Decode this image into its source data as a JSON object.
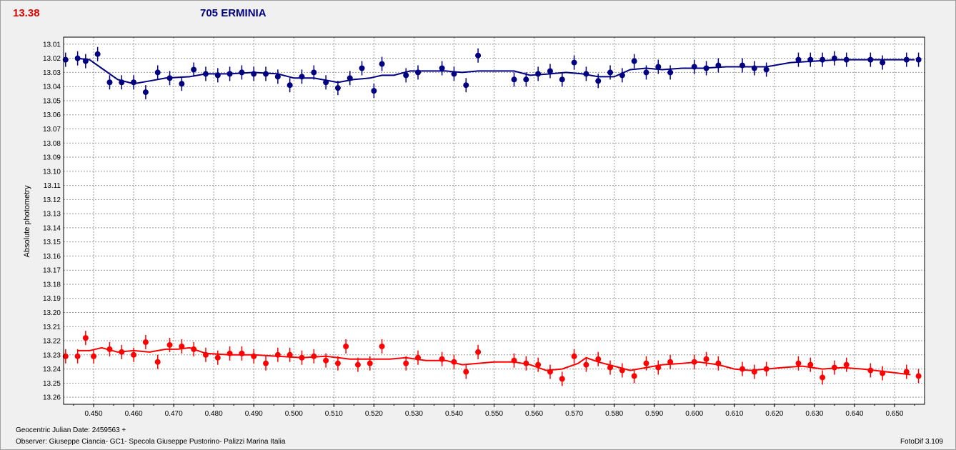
{
  "header": {
    "left_value": "13.38",
    "title": "705 ERMINIA"
  },
  "footer": {
    "julian_date": "Geocentric Julian Date: 2459563 +",
    "observer": "Observer: Giuseppe Ciancia- GC1- Specola Giuseppe Pustorino- Palizzi Marina Italia",
    "software": "FotoDif 3.109"
  },
  "chart_data": {
    "type": "scatter",
    "ylabel": "Absolute photometry",
    "xlabel": "",
    "xlim": [
      0.4425,
      0.6575
    ],
    "ylim": [
      13.005,
      13.265
    ],
    "y_inverted": true,
    "grid": true,
    "x_ticks": [
      "0.450",
      "0.460",
      "0.470",
      "0.480",
      "0.490",
      "0.500",
      "0.510",
      "0.520",
      "0.530",
      "0.540",
      "0.550",
      "0.560",
      "0.570",
      "0.580",
      "0.590",
      "0.600",
      "0.610",
      "0.620",
      "0.630",
      "0.640",
      "0.650"
    ],
    "y_ticks": [
      "13.01",
      "13.02",
      "13.03",
      "13.04",
      "13.05",
      "13.06",
      "13.07",
      "13.08",
      "13.09",
      "13.10",
      "13.11",
      "13.12",
      "13.13",
      "13.14",
      "13.15",
      "13.16",
      "13.17",
      "13.18",
      "13.19",
      "13.20",
      "13.21",
      "13.22",
      "13.23",
      "13.24",
      "13.25",
      "13.26"
    ],
    "series": [
      {
        "color": "#000080",
        "points": [
          [
            0.443,
            13.021
          ],
          [
            0.446,
            13.02
          ],
          [
            0.448,
            13.022
          ],
          [
            0.451,
            13.017
          ],
          [
            0.454,
            13.037
          ],
          [
            0.457,
            13.037
          ],
          [
            0.46,
            13.037
          ],
          [
            0.463,
            13.044
          ],
          [
            0.466,
            13.03
          ],
          [
            0.469,
            13.034
          ],
          [
            0.472,
            13.038
          ],
          [
            0.475,
            13.028
          ],
          [
            0.478,
            13.031
          ],
          [
            0.481,
            13.032
          ],
          [
            0.484,
            13.031
          ],
          [
            0.487,
            13.03
          ],
          [
            0.49,
            13.031
          ],
          [
            0.493,
            13.031
          ],
          [
            0.496,
            13.033
          ],
          [
            0.499,
            13.039
          ],
          [
            0.502,
            13.033
          ],
          [
            0.505,
            13.03
          ],
          [
            0.508,
            13.037
          ],
          [
            0.511,
            13.041
          ],
          [
            0.514,
            13.034
          ],
          [
            0.517,
            13.027
          ],
          [
            0.52,
            13.043
          ],
          [
            0.522,
            13.024
          ],
          [
            0.528,
            13.032
          ],
          [
            0.531,
            13.03
          ],
          [
            0.537,
            13.027
          ],
          [
            0.54,
            13.031
          ],
          [
            0.543,
            13.039
          ],
          [
            0.546,
            13.018
          ],
          [
            0.555,
            13.035
          ],
          [
            0.558,
            13.035
          ],
          [
            0.561,
            13.031
          ],
          [
            0.564,
            13.029
          ],
          [
            0.567,
            13.035
          ],
          [
            0.57,
            13.023
          ],
          [
            0.573,
            13.031
          ],
          [
            0.576,
            13.036
          ],
          [
            0.579,
            13.03
          ],
          [
            0.582,
            13.032
          ],
          [
            0.585,
            13.022
          ],
          [
            0.588,
            13.03
          ],
          [
            0.591,
            13.026
          ],
          [
            0.594,
            13.03
          ],
          [
            0.6,
            13.026
          ],
          [
            0.603,
            13.027
          ],
          [
            0.606,
            13.025
          ],
          [
            0.612,
            13.025
          ],
          [
            0.615,
            13.027
          ],
          [
            0.618,
            13.028
          ],
          [
            0.626,
            13.021
          ],
          [
            0.629,
            13.021
          ],
          [
            0.632,
            13.021
          ],
          [
            0.635,
            13.02
          ],
          [
            0.638,
            13.021
          ],
          [
            0.644,
            13.021
          ],
          [
            0.647,
            13.023
          ],
          [
            0.653,
            13.021
          ],
          [
            0.656,
            13.021
          ],
          [
            0.658,
            13.025
          ]
        ],
        "trend": [
          [
            0.446,
            13.02
          ],
          [
            0.449,
            13.021
          ],
          [
            0.452,
            13.027
          ],
          [
            0.456,
            13.035
          ],
          [
            0.46,
            13.038
          ],
          [
            0.464,
            13.036
          ],
          [
            0.468,
            13.034
          ],
          [
            0.474,
            13.033
          ],
          [
            0.478,
            13.031
          ],
          [
            0.484,
            13.031
          ],
          [
            0.49,
            13.03
          ],
          [
            0.496,
            13.031
          ],
          [
            0.5,
            13.034
          ],
          [
            0.505,
            13.034
          ],
          [
            0.511,
            13.037
          ],
          [
            0.515,
            13.035
          ],
          [
            0.519,
            13.034
          ],
          [
            0.522,
            13.032
          ],
          [
            0.525,
            13.032
          ],
          [
            0.529,
            13.029
          ],
          [
            0.534,
            13.029
          ],
          [
            0.538,
            13.029
          ],
          [
            0.542,
            13.03
          ],
          [
            0.546,
            13.029
          ],
          [
            0.551,
            13.029
          ],
          [
            0.555,
            13.029
          ],
          [
            0.559,
            13.032
          ],
          [
            0.564,
            13.031
          ],
          [
            0.568,
            13.03
          ],
          [
            0.572,
            13.031
          ],
          [
            0.576,
            13.033
          ],
          [
            0.58,
            13.033
          ],
          [
            0.584,
            13.028
          ],
          [
            0.588,
            13.027
          ],
          [
            0.592,
            13.028
          ],
          [
            0.597,
            13.027
          ],
          [
            0.602,
            13.027
          ],
          [
            0.608,
            13.026
          ],
          [
            0.614,
            13.026
          ],
          [
            0.618,
            13.026
          ],
          [
            0.624,
            13.023
          ],
          [
            0.63,
            13.022
          ],
          [
            0.636,
            13.021
          ],
          [
            0.642,
            13.021
          ],
          [
            0.648,
            13.021
          ],
          [
            0.655,
            13.021
          ]
        ]
      },
      {
        "color": "#ff0000",
        "points": [
          [
            0.443,
            13.231
          ],
          [
            0.446,
            13.231
          ],
          [
            0.448,
            13.218
          ],
          [
            0.45,
            13.231
          ],
          [
            0.454,
            13.226
          ],
          [
            0.457,
            13.228
          ],
          [
            0.46,
            13.23
          ],
          [
            0.463,
            13.221
          ],
          [
            0.466,
            13.235
          ],
          [
            0.469,
            13.223
          ],
          [
            0.472,
            13.224
          ],
          [
            0.475,
            13.226
          ],
          [
            0.478,
            13.23
          ],
          [
            0.481,
            13.232
          ],
          [
            0.484,
            13.229
          ],
          [
            0.487,
            13.229
          ],
          [
            0.49,
            13.231
          ],
          [
            0.493,
            13.236
          ],
          [
            0.496,
            13.23
          ],
          [
            0.499,
            13.23
          ],
          [
            0.502,
            13.232
          ],
          [
            0.505,
            13.231
          ],
          [
            0.508,
            13.234
          ],
          [
            0.511,
            13.236
          ],
          [
            0.513,
            13.224
          ],
          [
            0.516,
            13.237
          ],
          [
            0.519,
            13.236
          ],
          [
            0.522,
            13.224
          ],
          [
            0.528,
            13.236
          ],
          [
            0.531,
            13.232
          ],
          [
            0.537,
            13.233
          ],
          [
            0.54,
            13.235
          ],
          [
            0.543,
            13.242
          ],
          [
            0.546,
            13.228
          ],
          [
            0.555,
            13.234
          ],
          [
            0.558,
            13.236
          ],
          [
            0.561,
            13.237
          ],
          [
            0.564,
            13.242
          ],
          [
            0.567,
            13.247
          ],
          [
            0.57,
            13.231
          ],
          [
            0.573,
            13.237
          ],
          [
            0.576,
            13.233
          ],
          [
            0.579,
            13.239
          ],
          [
            0.582,
            13.241
          ],
          [
            0.585,
            13.245
          ],
          [
            0.588,
            13.236
          ],
          [
            0.591,
            13.239
          ],
          [
            0.594,
            13.235
          ],
          [
            0.6,
            13.235
          ],
          [
            0.603,
            13.233
          ],
          [
            0.606,
            13.236
          ],
          [
            0.612,
            13.24
          ],
          [
            0.615,
            13.242
          ],
          [
            0.618,
            13.24
          ],
          [
            0.626,
            13.236
          ],
          [
            0.629,
            13.237
          ],
          [
            0.632,
            13.246
          ],
          [
            0.635,
            13.239
          ],
          [
            0.638,
            13.237
          ],
          [
            0.644,
            13.241
          ],
          [
            0.647,
            13.243
          ],
          [
            0.653,
            13.242
          ],
          [
            0.656,
            13.245
          ],
          [
            0.658,
            13.24
          ]
        ],
        "trend": [
          [
            0.446,
            13.227
          ],
          [
            0.449,
            13.227
          ],
          [
            0.452,
            13.225
          ],
          [
            0.456,
            13.228
          ],
          [
            0.46,
            13.227
          ],
          [
            0.464,
            13.228
          ],
          [
            0.468,
            13.226
          ],
          [
            0.471,
            13.226
          ],
          [
            0.474,
            13.225
          ],
          [
            0.478,
            13.229
          ],
          [
            0.484,
            13.23
          ],
          [
            0.49,
            13.23
          ],
          [
            0.496,
            13.231
          ],
          [
            0.502,
            13.232
          ],
          [
            0.508,
            13.231
          ],
          [
            0.514,
            13.233
          ],
          [
            0.52,
            13.233
          ],
          [
            0.524,
            13.233
          ],
          [
            0.528,
            13.232
          ],
          [
            0.533,
            13.234
          ],
          [
            0.538,
            13.234
          ],
          [
            0.542,
            13.237
          ],
          [
            0.546,
            13.236
          ],
          [
            0.55,
            13.235
          ],
          [
            0.555,
            13.235
          ],
          [
            0.559,
            13.237
          ],
          [
            0.563,
            13.241
          ],
          [
            0.567,
            13.24
          ],
          [
            0.571,
            13.236
          ],
          [
            0.573,
            13.232
          ],
          [
            0.576,
            13.235
          ],
          [
            0.58,
            13.238
          ],
          [
            0.584,
            13.241
          ],
          [
            0.588,
            13.239
          ],
          [
            0.592,
            13.237
          ],
          [
            0.597,
            13.236
          ],
          [
            0.601,
            13.235
          ],
          [
            0.606,
            13.237
          ],
          [
            0.61,
            13.24
          ],
          [
            0.614,
            13.241
          ],
          [
            0.618,
            13.24
          ],
          [
            0.622,
            13.239
          ],
          [
            0.627,
            13.238
          ],
          [
            0.632,
            13.24
          ],
          [
            0.637,
            13.239
          ],
          [
            0.642,
            13.24
          ],
          [
            0.648,
            13.242
          ],
          [
            0.654,
            13.244
          ]
        ]
      }
    ]
  }
}
